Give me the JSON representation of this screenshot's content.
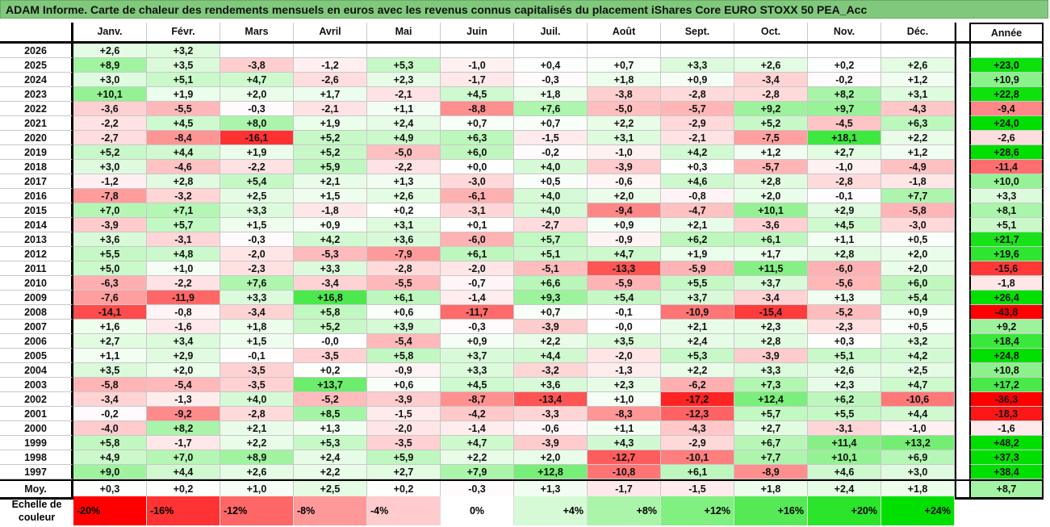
{
  "title": "ADAM Informe. Carte de chaleur des rendements mensuels en euros avec les revenus connus capitalisés du placement iShares Core EURO STOXX 50 PEA_Acc",
  "chart_data": {
    "type": "heatmap",
    "title": "ADAM Informe. Carte de chaleur des rendements mensuels en euros avec les revenus connus capitalisés du placement iShares Core EURO STOXX 50 PEA_Acc",
    "columns": [
      "Janv.",
      "Févr.",
      "Mars",
      "Avril",
      "Mai",
      "Juin",
      "Juil.",
      "Août",
      "Sept.",
      "Oct.",
      "Nov.",
      "Déc."
    ],
    "year_header": "Année",
    "rows": [
      {
        "year": "2026",
        "values": [
          "+2,6",
          "+3,2",
          "",
          "",
          "",
          "",
          "",
          "",
          "",
          "",
          "",
          ""
        ],
        "annual": ""
      },
      {
        "year": "2025",
        "values": [
          "+8,9",
          "+3,5",
          "-3,8",
          "-1,2",
          "+5,3",
          "-1,0",
          "+0,4",
          "+0,7",
          "+3,3",
          "+2,6",
          "+0,2",
          "+2,6"
        ],
        "annual": "+23,0"
      },
      {
        "year": "2024",
        "values": [
          "+3,0",
          "+5,1",
          "+4,7",
          "-2,6",
          "+2,3",
          "-1,7",
          "-0,3",
          "+1,8",
          "+0,9",
          "-3,4",
          "-0,2",
          "+1,2"
        ],
        "annual": "+10,9"
      },
      {
        "year": "2023",
        "values": [
          "+10,1",
          "+1,9",
          "+2,0",
          "+1,7",
          "-2,1",
          "+4,5",
          "+1,8",
          "-3,8",
          "-2,8",
          "-2,8",
          "+8,2",
          "+3,1"
        ],
        "annual": "+22,8"
      },
      {
        "year": "2022",
        "values": [
          "-3,6",
          "-5,5",
          "-0,3",
          "-2,1",
          "+1,1",
          "-8,8",
          "+7,6",
          "-5,0",
          "-5,7",
          "+9,2",
          "+9,7",
          "-4,3"
        ],
        "annual": "-9,4"
      },
      {
        "year": "2021",
        "values": [
          "-2,2",
          "+4,5",
          "+8,0",
          "+1,9",
          "+2,4",
          "+0,7",
          "+0,7",
          "+2,2",
          "-2,9",
          "+5,2",
          "-4,5",
          "+6,3"
        ],
        "annual": "+24,0"
      },
      {
        "year": "2020",
        "values": [
          "-2,7",
          "-8,4",
          "-16,1",
          "+5,2",
          "+4,9",
          "+6,3",
          "-1,5",
          "+3,1",
          "-2,1",
          "-7,5",
          "+18,1",
          "+2,2"
        ],
        "annual": "-2,6"
      },
      {
        "year": "2019",
        "values": [
          "+5,2",
          "+4,4",
          "+1,9",
          "+5,2",
          "-5,0",
          "+6,0",
          "-0,2",
          "-1,0",
          "+4,2",
          "+1,2",
          "+2,7",
          "+1,2"
        ],
        "annual": "+28,6"
      },
      {
        "year": "2018",
        "values": [
          "+3,0",
          "-4,6",
          "-2,2",
          "+5,9",
          "-2,2",
          "+0,0",
          "+4,0",
          "-3,9",
          "+0,3",
          "-5,7",
          "-1,0",
          "-4,9"
        ],
        "annual": "-11,4"
      },
      {
        "year": "2017",
        "values": [
          "-1,2",
          "+2,8",
          "+5,4",
          "+2,1",
          "+1,3",
          "-3,0",
          "+0,5",
          "-0,6",
          "+4,6",
          "+2,8",
          "-2,8",
          "-1,8"
        ],
        "annual": "+10,0"
      },
      {
        "year": "2016",
        "values": [
          "-7,8",
          "-3,2",
          "+2,5",
          "+1,5",
          "+2,6",
          "-6,1",
          "+4,0",
          "+2,0",
          "-0,8",
          "+2,0",
          "-0,1",
          "+7,7"
        ],
        "annual": "+3,3"
      },
      {
        "year": "2015",
        "values": [
          "+7,0",
          "+7,1",
          "+3,3",
          "-1,8",
          "+0,2",
          "-3,1",
          "+4,0",
          "-9,4",
          "-4,7",
          "+10,1",
          "+2,9",
          "-5,8"
        ],
        "annual": "+8,1"
      },
      {
        "year": "2014",
        "values": [
          "-3,9",
          "+5,7",
          "+1,5",
          "+0,9",
          "+3,1",
          "+0,1",
          "-2,7",
          "+0,9",
          "+2,1",
          "-3,6",
          "+4,5",
          "-3,0"
        ],
        "annual": "+5,1"
      },
      {
        "year": "2013",
        "values": [
          "+3,6",
          "-3,1",
          "-0,3",
          "+4,2",
          "+3,6",
          "-6,0",
          "+5,7",
          "-0,9",
          "+6,2",
          "+6,1",
          "+1,1",
          "+0,5"
        ],
        "annual": "+21,7"
      },
      {
        "year": "2012",
        "values": [
          "+5,5",
          "+4,8",
          "-2,0",
          "-5,3",
          "-7,9",
          "+6,1",
          "+5,1",
          "+4,7",
          "+1,9",
          "+1,7",
          "+2,8",
          "+2,0"
        ],
        "annual": "+19,6"
      },
      {
        "year": "2011",
        "values": [
          "+5,0",
          "+1,0",
          "-2,3",
          "+3,3",
          "-2,8",
          "-2,0",
          "-5,1",
          "-13,3",
          "-5,9",
          "+11,5",
          "-6,0",
          "+2,0"
        ],
        "annual": "-15,6"
      },
      {
        "year": "2010",
        "values": [
          "-6,3",
          "-2,2",
          "+7,6",
          "-3,4",
          "-5,5",
          "-0,7",
          "+6,6",
          "-5,9",
          "+5,5",
          "+3,7",
          "-5,6",
          "+6,0"
        ],
        "annual": "-1,8"
      },
      {
        "year": "2009",
        "values": [
          "-7,6",
          "-11,9",
          "+3,3",
          "+16,8",
          "+6,1",
          "-1,4",
          "+9,3",
          "+5,4",
          "+3,7",
          "-3,4",
          "+1,3",
          "+5,4"
        ],
        "annual": "+26,4"
      },
      {
        "year": "2008",
        "values": [
          "-14,1",
          "-0,8",
          "-3,4",
          "+5,8",
          "+0,6",
          "-11,7",
          "+0,7",
          "-0,1",
          "-10,9",
          "-15,4",
          "-5,2",
          "+0,9"
        ],
        "annual": "-43,8"
      },
      {
        "year": "2007",
        "values": [
          "+1,6",
          "-1,6",
          "+1,8",
          "+5,2",
          "+3,9",
          "-0,3",
          "-3,9",
          "-0,0",
          "+2,1",
          "+2,3",
          "-2,3",
          "+0,5"
        ],
        "annual": "+9,2"
      },
      {
        "year": "2006",
        "values": [
          "+2,7",
          "+3,4",
          "+1,5",
          "-0,0",
          "-5,4",
          "+0,9",
          "+2,2",
          "+3,5",
          "+2,4",
          "+2,8",
          "+0,3",
          "+3,2"
        ],
        "annual": "+18,4"
      },
      {
        "year": "2005",
        "values": [
          "+1,1",
          "+2,9",
          "-0,1",
          "-3,5",
          "+5,8",
          "+3,7",
          "+4,4",
          "-2,0",
          "+5,3",
          "-3,9",
          "+5,1",
          "+4,2"
        ],
        "annual": "+24,8"
      },
      {
        "year": "2004",
        "values": [
          "+3,5",
          "+2,0",
          "-3,5",
          "+0,2",
          "-0,9",
          "+3,3",
          "-3,2",
          "-1,3",
          "+2,2",
          "+3,3",
          "+2,6",
          "+2,5"
        ],
        "annual": "+10,8"
      },
      {
        "year": "2003",
        "values": [
          "-5,8",
          "-5,4",
          "-3,5",
          "+13,7",
          "+0,6",
          "+4,5",
          "+3,6",
          "+2,3",
          "-6,2",
          "+7,3",
          "+2,3",
          "+4,7"
        ],
        "annual": "+17,2"
      },
      {
        "year": "2002",
        "values": [
          "-3,4",
          "-1,3",
          "+4,0",
          "-5,2",
          "-3,9",
          "-8,7",
          "-13,4",
          "+1,0",
          "-17,2",
          "+12,4",
          "+6,2",
          "-10,6"
        ],
        "annual": "-36,3"
      },
      {
        "year": "2001",
        "values": [
          "-0,2",
          "-9,2",
          "-2,8",
          "+8,5",
          "-1,5",
          "-4,2",
          "-3,3",
          "-8,3",
          "-12,3",
          "+5,7",
          "+5,5",
          "+4,4"
        ],
        "annual": "-18,3"
      },
      {
        "year": "2000",
        "values": [
          "-4,0",
          "+8,2",
          "+2,1",
          "+1,3",
          "-2,0",
          "-1,4",
          "-0,6",
          "+1,1",
          "-4,3",
          "+2,7",
          "-3,1",
          "-1,0"
        ],
        "annual": "-1,6"
      },
      {
        "year": "1999",
        "values": [
          "+5,8",
          "-1,7",
          "+2,2",
          "+5,3",
          "-3,5",
          "+4,7",
          "-3,9",
          "+4,3",
          "-2,9",
          "+6,7",
          "+11,4",
          "+13,2"
        ],
        "annual": "+48,2"
      },
      {
        "year": "1998",
        "values": [
          "+4,9",
          "+7,0",
          "+8,9",
          "+2,4",
          "+5,9",
          "+2,2",
          "+2,0",
          "-12,7",
          "-10,1",
          "+7,7",
          "+10,1",
          "+6,9"
        ],
        "annual": "+37,3"
      },
      {
        "year": "1997",
        "values": [
          "+9,0",
          "+4,4",
          "+2,6",
          "+2,2",
          "+2,7",
          "+7,9",
          "+12,8",
          "-10,8",
          "+6,1",
          "-8,9",
          "+4,6",
          "+3,0"
        ],
        "annual": "+38,4"
      }
    ],
    "average": {
      "label": "Moy.",
      "values": [
        "+0,3",
        "+0,2",
        "+1,0",
        "+2,5",
        "+0,2",
        "-0,3",
        "+1,3",
        "-1,7",
        "-1,5",
        "+1,8",
        "+2,4",
        "+1,8"
      ],
      "annual": "+8,7"
    },
    "legend": {
      "label": "Echelle de couleur",
      "steps": [
        {
          "label": "-20%",
          "value": -20
        },
        {
          "label": "-16%",
          "value": -16
        },
        {
          "label": "-12%",
          "value": -12
        },
        {
          "label": "-8%",
          "value": -8
        },
        {
          "label": "-4%",
          "value": -4
        },
        {
          "label": "0%",
          "value": 0
        },
        {
          "label": "+4%",
          "value": 4
        },
        {
          "label": "+8%",
          "value": 8
        },
        {
          "label": "+12%",
          "value": 12
        },
        {
          "label": "+16%",
          "value": 16
        },
        {
          "label": "+20%",
          "value": 20
        },
        {
          "label": "+24%",
          "value": 24
        }
      ]
    },
    "colors": {
      "negative_max": "#ff0000",
      "neutral": "#ffffff",
      "positive_max": "#00e000"
    }
  }
}
